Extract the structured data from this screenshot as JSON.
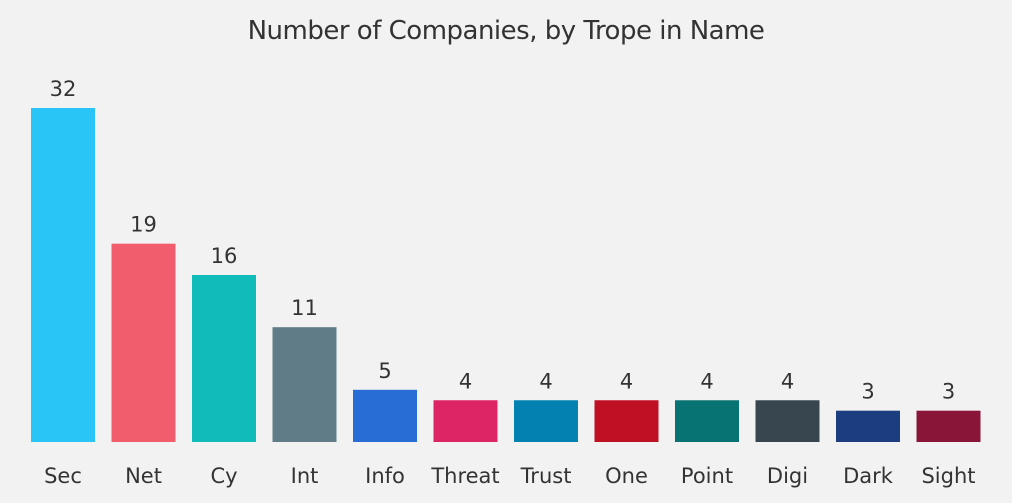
{
  "chart_data": {
    "type": "bar",
    "title": "Number of Companies, by Trope in Name",
    "xlabel": "",
    "ylabel": "",
    "categories": [
      "Sec",
      "Net",
      "Cy",
      "Int",
      "Info",
      "Threat",
      "Trust",
      "One",
      "Point",
      "Digi",
      "Dark",
      "Sight"
    ],
    "values": [
      32,
      19,
      16,
      11,
      5,
      4,
      4,
      4,
      4,
      4,
      3,
      3
    ],
    "colors": [
      "#29c5f6",
      "#f15d6c",
      "#0fbcba",
      "#607d87",
      "#286dd6",
      "#dd2566",
      "#0381b1",
      "#bf1024",
      "#087373",
      "#38464f",
      "#1c3e80",
      "#891539"
    ],
    "ylim": [
      0,
      32
    ],
    "grid": false,
    "legend": "none",
    "data_labels": true
  }
}
